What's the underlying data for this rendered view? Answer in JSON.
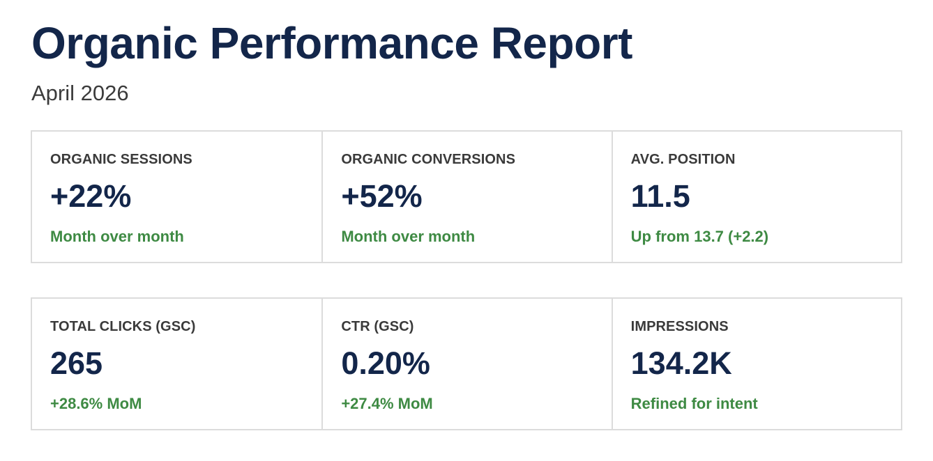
{
  "report": {
    "title": "Organic Performance Report",
    "subtitle": "April 2026"
  },
  "colors": {
    "title": "#13264a",
    "value": "#13264a",
    "positive": "#3e8a43",
    "label": "#3a3a3a",
    "border": "#dcdcdc"
  },
  "metrics_row1": [
    {
      "label": "ORGANIC SESSIONS",
      "value": "+22%",
      "note": "Month over month"
    },
    {
      "label": "ORGANIC CONVERSIONS",
      "value": "+52%",
      "note": "Month over month"
    },
    {
      "label": "AVG. POSITION",
      "value": "11.5",
      "note": "Up from 13.7 (+2.2)"
    }
  ],
  "metrics_row2": [
    {
      "label": "TOTAL CLICKS (GSC)",
      "value": "265",
      "note": "+28.6% MoM"
    },
    {
      "label": "CTR (GSC)",
      "value": "0.20%",
      "note": "+27.4% MoM"
    },
    {
      "label": "IMPRESSIONS",
      "value": "134.2K",
      "note": "Refined for intent"
    }
  ]
}
